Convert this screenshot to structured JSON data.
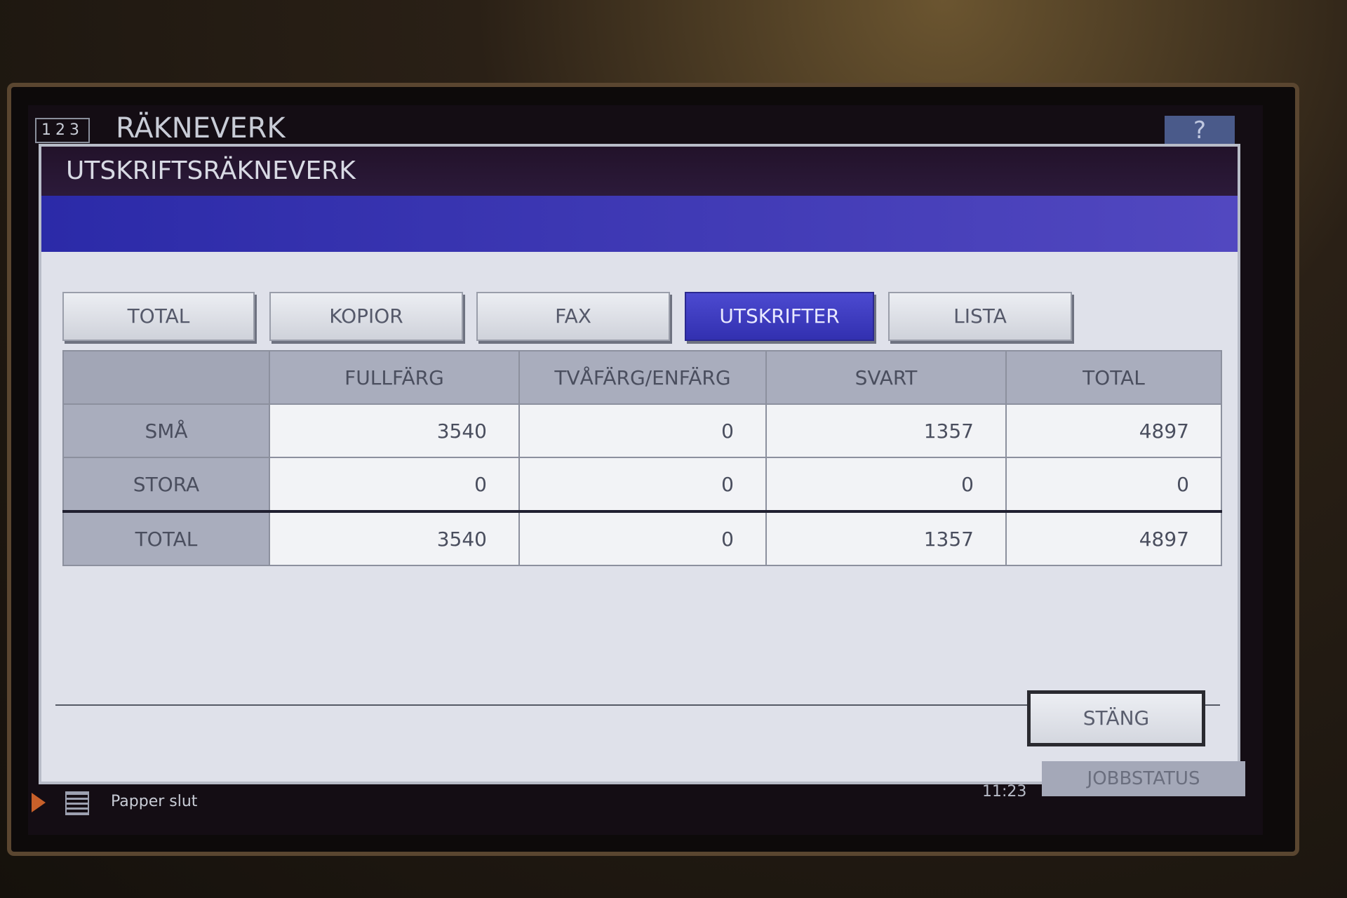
{
  "screen": {
    "counter_box": "123",
    "title": "RÄKNEVERK",
    "help_label": "?"
  },
  "dialog": {
    "title": "UTSKRIFTSRÄKNEVERK",
    "tabs": [
      {
        "label": "TOTAL",
        "active": false
      },
      {
        "label": "KOPIOR",
        "active": false
      },
      {
        "label": "FAX",
        "active": false
      },
      {
        "label": "UTSKRIFTER",
        "active": true
      },
      {
        "label": "LISTA",
        "active": false
      }
    ],
    "table": {
      "headers": [
        "",
        "FULLFÄRG",
        "TVÅFÄRG/ENFÄRG",
        "SVART",
        "TOTAL"
      ],
      "rows": [
        {
          "label": "SMÅ",
          "values": [
            "3540",
            "0",
            "1357",
            "4897"
          ]
        },
        {
          "label": "STORA",
          "values": [
            "0",
            "0",
            "0",
            "0"
          ]
        },
        {
          "label": "TOTAL",
          "values": [
            "3540",
            "0",
            "1357",
            "4897"
          ]
        }
      ]
    },
    "close_label": "STÄNG"
  },
  "status_bar": {
    "message": "Papper slut",
    "time": "11:23",
    "job_status_label": "JOBBSTATUS"
  },
  "colors": {
    "active_tab": "#3a38c0",
    "title_bar": "#22122a",
    "band": "#2b2aa8",
    "panel": "#dfe1ea"
  }
}
